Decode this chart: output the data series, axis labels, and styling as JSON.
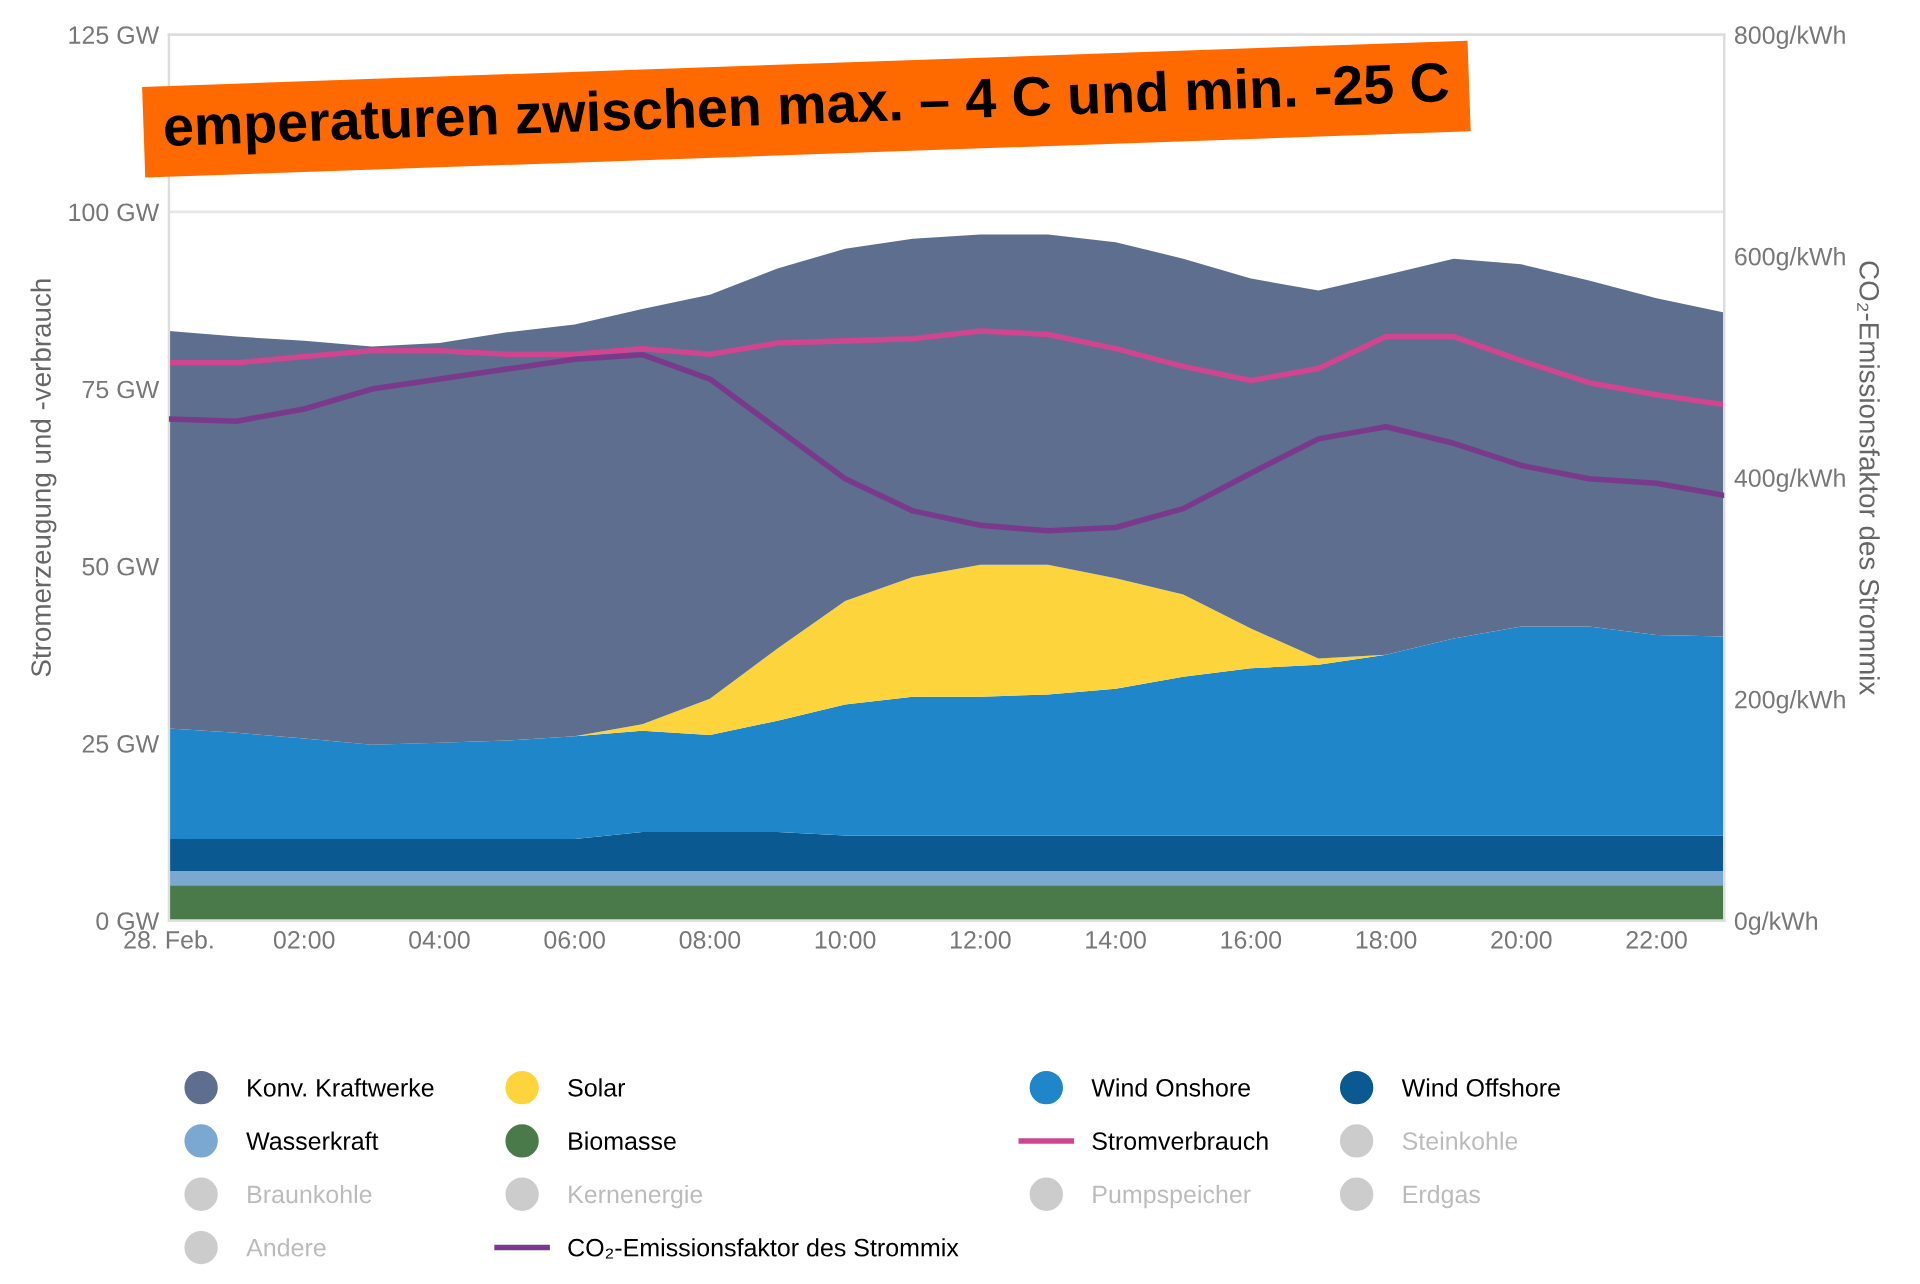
{
  "chart_data": {
    "type": "area",
    "stacked": true,
    "ylabel": "Stromerzeugung und -verbrauch",
    "y2label": "CO₂-Emissionsfaktor des Strommix",
    "x": [
      0,
      1,
      2,
      3,
      4,
      5,
      6,
      7,
      8,
      9,
      10,
      11,
      12,
      13,
      14,
      15,
      16,
      17,
      18,
      19,
      20,
      21,
      22,
      23
    ],
    "xlim": [
      0,
      23
    ],
    "xticks": [
      {
        "value": 0,
        "label": "28. Feb."
      },
      {
        "value": 2,
        "label": "02:00"
      },
      {
        "value": 4,
        "label": "04:00"
      },
      {
        "value": 6,
        "label": "06:00"
      },
      {
        "value": 8,
        "label": "08:00"
      },
      {
        "value": 10,
        "label": "10:00"
      },
      {
        "value": 12,
        "label": "12:00"
      },
      {
        "value": 14,
        "label": "14:00"
      },
      {
        "value": 16,
        "label": "16:00"
      },
      {
        "value": 18,
        "label": "18:00"
      },
      {
        "value": 20,
        "label": "20:00"
      },
      {
        "value": 22,
        "label": "22:00"
      }
    ],
    "ylim": [
      0,
      125
    ],
    "yticks": [
      {
        "value": 0,
        "label": "0 GW"
      },
      {
        "value": 25,
        "label": "25 GW"
      },
      {
        "value": 50,
        "label": "50 GW"
      },
      {
        "value": 75,
        "label": "75 GW"
      },
      {
        "value": 100,
        "label": "100 GW"
      },
      {
        "value": 125,
        "label": "125 GW"
      }
    ],
    "y2lim": [
      0,
      800
    ],
    "y2ticks": [
      {
        "value": 0,
        "label": "0g/kWh"
      },
      {
        "value": 200,
        "label": "200g/kWh"
      },
      {
        "value": 400,
        "label": "400g/kWh"
      },
      {
        "value": 600,
        "label": "600g/kWh"
      },
      {
        "value": 800,
        "label": "800g/kWh"
      }
    ],
    "grid": "y",
    "legend": "bottom",
    "annotations": [
      "emperaturen zwischen max. – 4 C und min. -25 C"
    ],
    "series": [
      {
        "name": "Biomasse",
        "color": "#4a7a4a",
        "values": [
          5.0,
          5.0,
          5.0,
          5.0,
          5.0,
          5.0,
          5.0,
          5.0,
          5.0,
          5.0,
          5.0,
          5.0,
          5.0,
          5.0,
          5.0,
          5.0,
          5.0,
          5.0,
          5.0,
          5.0,
          5.0,
          5.0,
          5.0,
          5.0
        ]
      },
      {
        "name": "Wasserkraft",
        "color": "#7aa8d0",
        "values": [
          2.0,
          2.0,
          2.0,
          2.0,
          2.0,
          2.0,
          2.0,
          2.0,
          2.0,
          2.0,
          2.0,
          2.0,
          2.0,
          2.0,
          2.0,
          2.0,
          2.0,
          2.0,
          2.0,
          2.0,
          2.0,
          2.0,
          2.0,
          2.0
        ]
      },
      {
        "name": "Wind Offshore",
        "color": "#0a5a91",
        "values": [
          4.5,
          4.5,
          4.5,
          4.5,
          4.5,
          4.5,
          4.5,
          5.5,
          5.5,
          5.5,
          5.0,
          5.0,
          5.0,
          5.0,
          5.0,
          5.0,
          5.0,
          5.0,
          5.0,
          5.0,
          5.0,
          5.0,
          5.0,
          5.0
        ]
      },
      {
        "name": "Wind Onshore",
        "color": "#1f87c9",
        "values": [
          15.6,
          15.0,
          14.2,
          13.3,
          13.6,
          13.9,
          14.5,
          14.3,
          13.7,
          15.7,
          18.5,
          19.6,
          19.6,
          19.9,
          20.7,
          22.4,
          23.6,
          24.1,
          25.5,
          27.8,
          29.5,
          29.5,
          28.3,
          28.1
        ]
      },
      {
        "name": "Solar",
        "color": "#fdd43c",
        "values": [
          0,
          0,
          0,
          0,
          0,
          0,
          0,
          0.9,
          5.1,
          10.2,
          14.6,
          16.9,
          18.6,
          18.3,
          15.6,
          11.6,
          5.6,
          0.9,
          0,
          0,
          0,
          0,
          0,
          0
        ]
      },
      {
        "name": "Konv. Kraftwerke",
        "color": "#5d6e8e",
        "values": [
          56.1,
          55.9,
          56.1,
          56.2,
          56.4,
          57.6,
          58.1,
          58.6,
          57.0,
          53.6,
          49.7,
          47.7,
          46.6,
          46.6,
          47.4,
          47.4,
          49.4,
          51.9,
          53.6,
          53.6,
          51.1,
          48.8,
          47.5,
          45.7
        ]
      },
      {
        "name": "Stromverbrauch",
        "type": "line",
        "color": "#d0458f",
        "values": [
          78.7,
          78.7,
          79.6,
          80.4,
          80.4,
          79.9,
          79.9,
          80.7,
          79.9,
          81.5,
          81.8,
          82.1,
          83.2,
          82.7,
          80.7,
          78.2,
          76.2,
          77.9,
          82.4,
          82.4,
          79.0,
          75.9,
          74.2,
          72.8
        ]
      },
      {
        "name": "CO₂-Emissionsfaktor des Strommix",
        "type": "line",
        "axis": "y2",
        "color": "#7a3a8c",
        "values": [
          453,
          451,
          462,
          480,
          489,
          498,
          507,
          511,
          489,
          444,
          399,
          370,
          357,
          352,
          355,
          372,
          404,
          435,
          446,
          431,
          411,
          399,
          395,
          384
        ]
      },
      {
        "name": "Steinkohle",
        "color": "#cccccc",
        "values": [
          null,
          null,
          null,
          null,
          null,
          null,
          null,
          null,
          null,
          null,
          null,
          null,
          null,
          null,
          null,
          null,
          null,
          null,
          null,
          null,
          null,
          null,
          null,
          null
        ]
      },
      {
        "name": "Braunkohle",
        "color": "#cccccc",
        "values": [
          null,
          null,
          null,
          null,
          null,
          null,
          null,
          null,
          null,
          null,
          null,
          null,
          null,
          null,
          null,
          null,
          null,
          null,
          null,
          null,
          null,
          null,
          null,
          null
        ]
      },
      {
        "name": "Kernenergie",
        "color": "#cccccc",
        "values": [
          null,
          null,
          null,
          null,
          null,
          null,
          null,
          null,
          null,
          null,
          null,
          null,
          null,
          null,
          null,
          null,
          null,
          null,
          null,
          null,
          null,
          null,
          null,
          null
        ]
      },
      {
        "name": "Pumpspeicher",
        "color": "#cccccc",
        "values": [
          null,
          null,
          null,
          null,
          null,
          null,
          null,
          null,
          null,
          null,
          null,
          null,
          null,
          null,
          null,
          null,
          null,
          null,
          null,
          null,
          null,
          null,
          null,
          null
        ]
      },
      {
        "name": "Erdgas",
        "color": "#cccccc",
        "values": [
          null,
          null,
          null,
          null,
          null,
          null,
          null,
          null,
          null,
          null,
          null,
          null,
          null,
          null,
          null,
          null,
          null,
          null,
          null,
          null,
          null,
          null,
          null,
          null
        ]
      },
      {
        "name": "Andere",
        "color": "#cccccc",
        "values": [
          null,
          null,
          null,
          null,
          null,
          null,
          null,
          null,
          null,
          null,
          null,
          null,
          null,
          null,
          null,
          null,
          null,
          null,
          null,
          null,
          null,
          null,
          null,
          null
        ]
      }
    ]
  }
}
